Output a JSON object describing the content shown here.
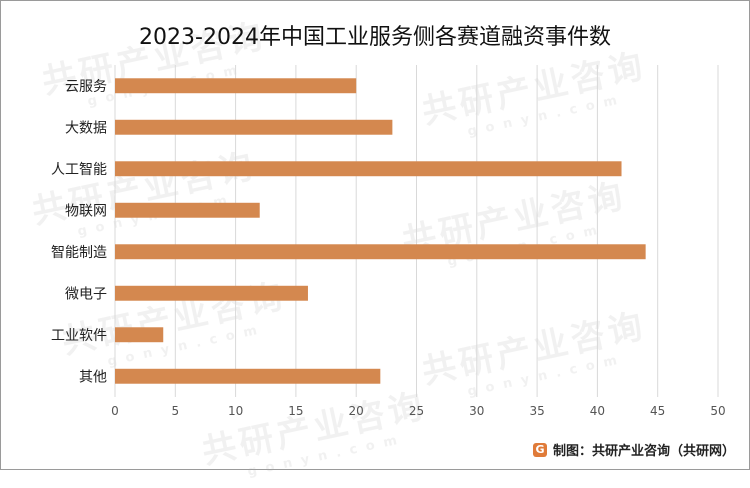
{
  "chart_data": {
    "type": "bar",
    "orientation": "horizontal",
    "title": "2023-2024年中国工业服务侧各赛道融资事件数",
    "categories": [
      "云服务",
      "大数据",
      "人工智能",
      "物联网",
      "智能制造",
      "微电子",
      "工业软件",
      "其他"
    ],
    "values": [
      20,
      23,
      42,
      12,
      44,
      16,
      4,
      22
    ],
    "xlim": [
      0,
      50
    ],
    "xticks": [
      0,
      5,
      10,
      15,
      20,
      25,
      30,
      35,
      40,
      45,
      50
    ],
    "grid": "vertical",
    "legend": "none",
    "bar_color": "#d4884f",
    "grid_color": "#d9d9d9"
  },
  "source": {
    "text": "制图：共研产业咨询（共研网）",
    "logo_color": "#e07b39"
  },
  "watermark": {
    "main": "共研产业咨询",
    "sub": "gonyn.com"
  }
}
